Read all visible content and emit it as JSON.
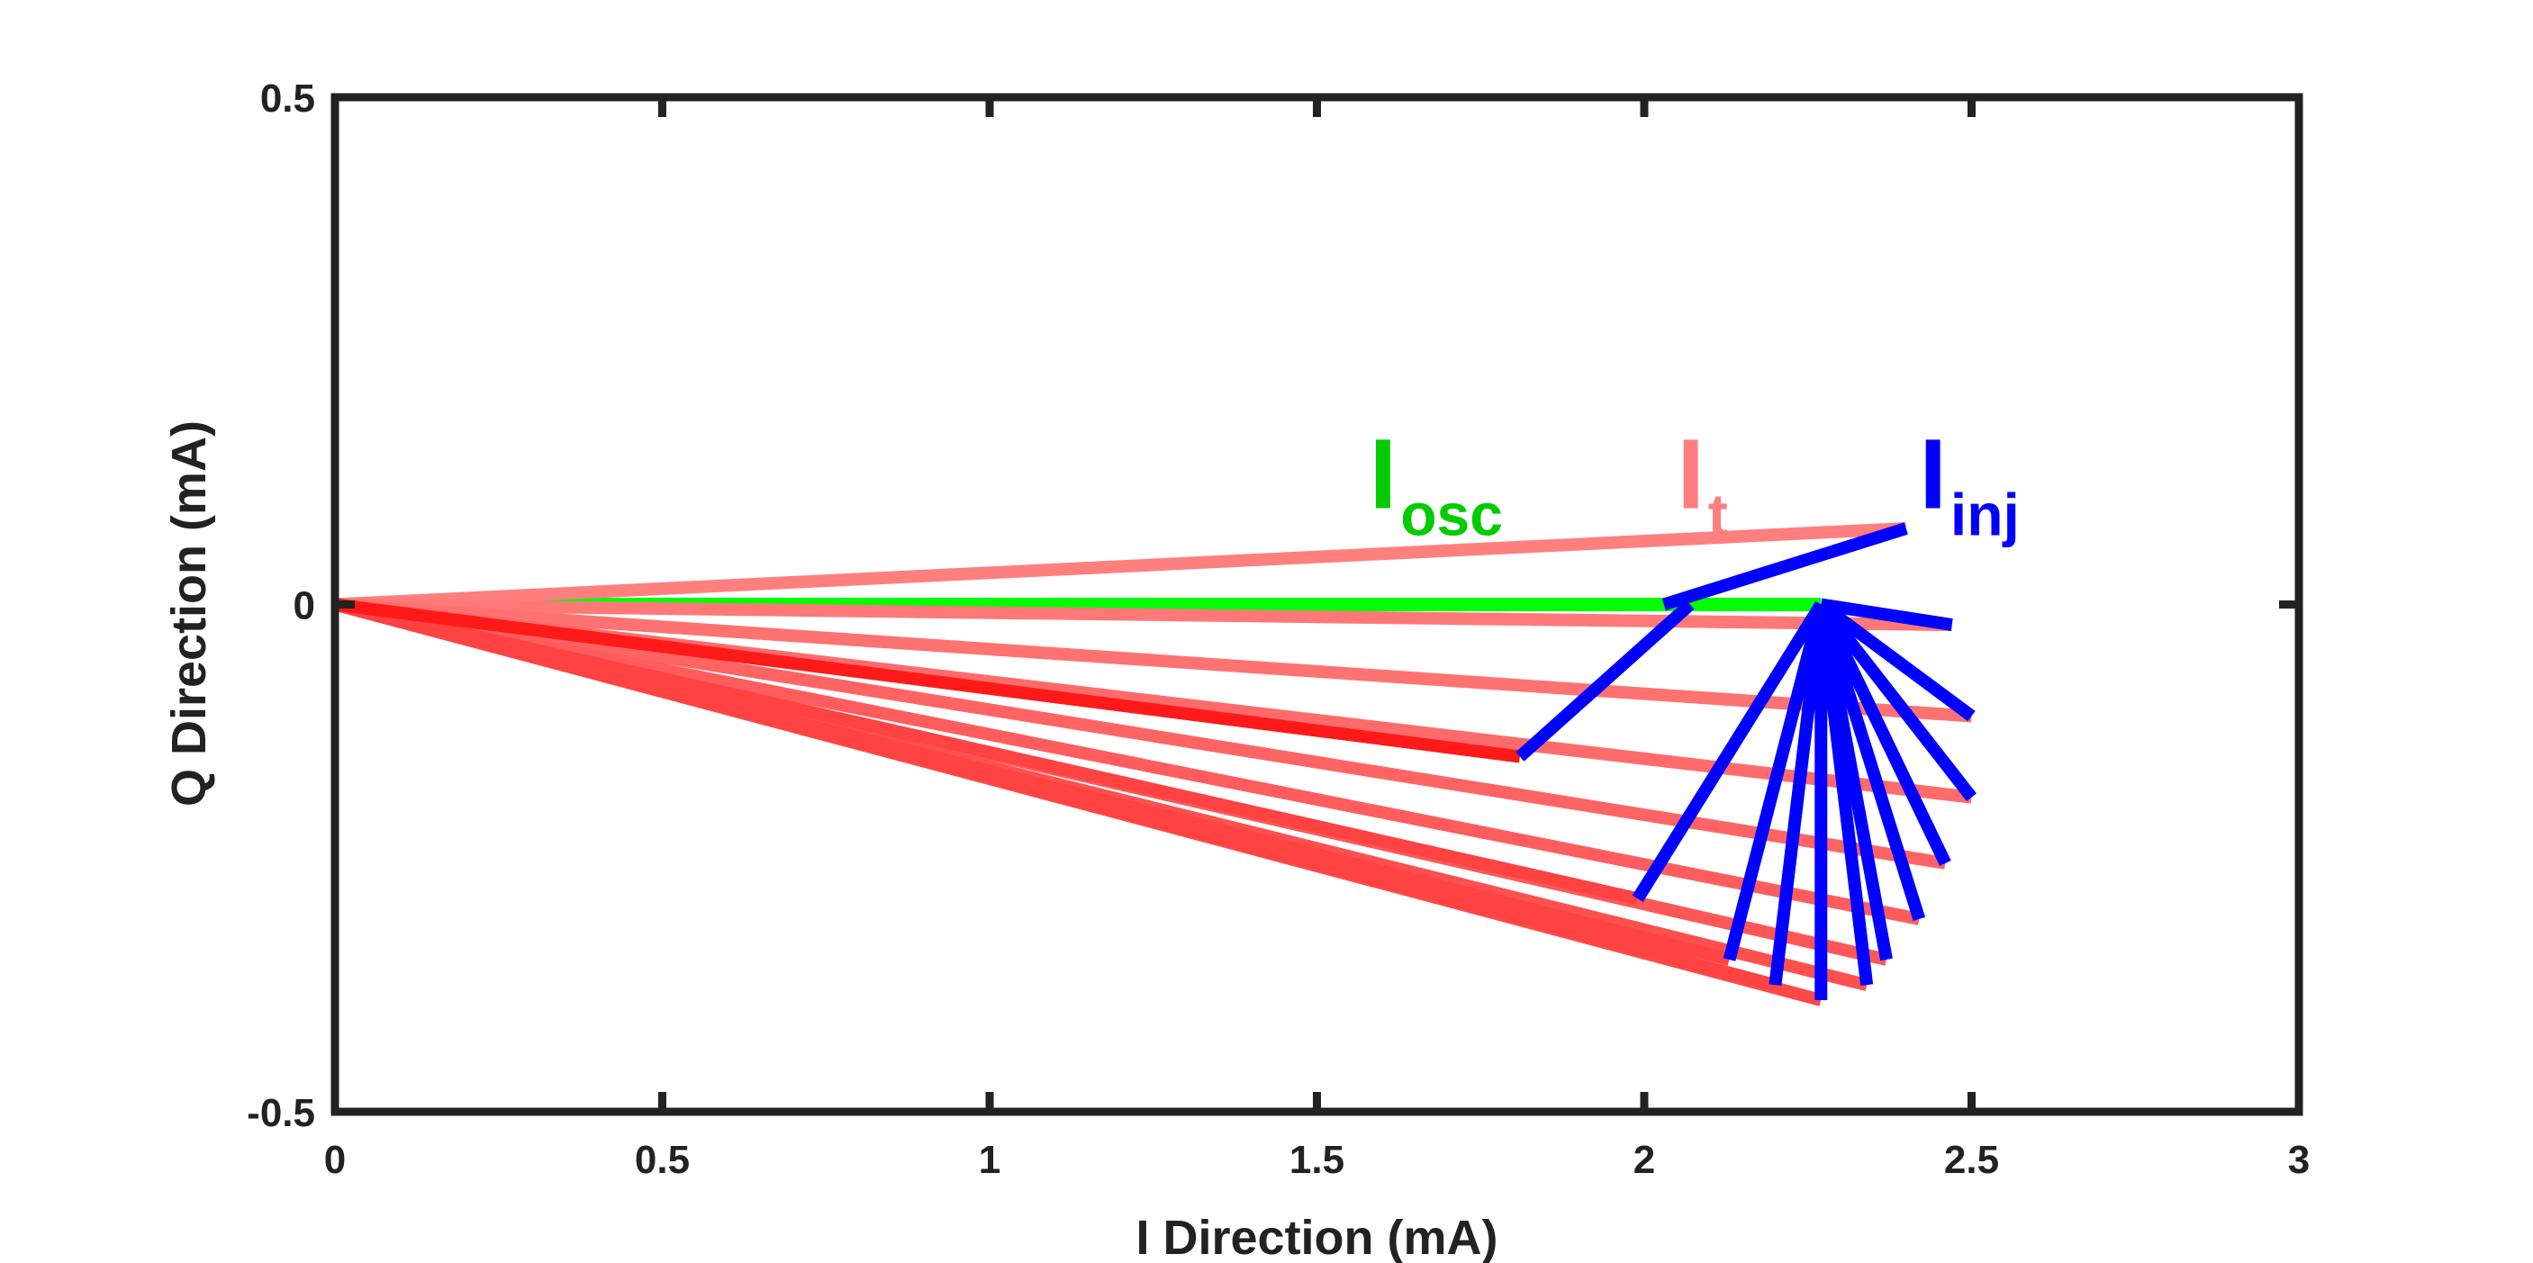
{
  "chart_data": {
    "type": "line",
    "title": "",
    "xlabel": "I Direction (mA)",
    "ylabel": "Q Direction (mA)",
    "xlim": [
      0,
      3
    ],
    "ylim": [
      -0.5,
      0.5
    ],
    "xticks": [
      0,
      0.5,
      1,
      1.5,
      2,
      2.5,
      3
    ],
    "xtick_labels": [
      "0",
      "0.5",
      "1",
      "1.5",
      "2",
      "2.5",
      "3"
    ],
    "yticks": [
      -0.5,
      0,
      0.5
    ],
    "ytick_labels": [
      "-0.5",
      "0",
      "0.5"
    ],
    "grid": false,
    "colors": {
      "axes": "#222222",
      "osc": "#00ff00",
      "inj": "#0000ff",
      "t_light": "#ff7f7f",
      "t_dark": "#ff1a1a"
    },
    "annotations": [
      {
        "main": "I",
        "sub": "osc",
        "color": "#00cc00",
        "x": 1.58,
        "y": 0.095
      },
      {
        "main": "I",
        "sub": "t",
        "color": "#ff7f7f",
        "x": 2.05,
        "y": 0.095
      },
      {
        "main": "I",
        "sub": "inj",
        "color": "#0000ff",
        "x": 2.42,
        "y": 0.095
      }
    ],
    "series": [
      {
        "name": "I_osc",
        "color": "#00ff00",
        "vectors": [
          {
            "from": [
              0,
              0
            ],
            "to": [
              2.03,
              0.0
            ]
          },
          {
            "from": [
              0,
              0
            ],
            "to": [
              2.27,
              0.0
            ]
          }
        ]
      },
      {
        "name": "I_inj",
        "color": "#0000ff",
        "vectors": [
          {
            "from": [
              2.03,
              0.0
            ],
            "to": [
              2.4,
              0.075
            ]
          },
          {
            "from": [
              2.27,
              0.0
            ],
            "to": [
              2.47,
              -0.02
            ]
          },
          {
            "from": [
              2.27,
              0.0
            ],
            "to": [
              2.5,
              -0.11
            ]
          },
          {
            "from": [
              2.27,
              0.0
            ],
            "to": [
              2.5,
              -0.19
            ]
          },
          {
            "from": [
              2.27,
              0.0
            ],
            "to": [
              2.46,
              -0.255
            ]
          },
          {
            "from": [
              2.27,
              0.0
            ],
            "to": [
              2.42,
              -0.31
            ]
          },
          {
            "from": [
              2.27,
              0.0
            ],
            "to": [
              2.37,
              -0.35
            ]
          },
          {
            "from": [
              2.27,
              0.0
            ],
            "to": [
              2.34,
              -0.375
            ]
          },
          {
            "from": [
              2.27,
              0.0
            ],
            "to": [
              2.27,
              -0.39
            ]
          },
          {
            "from": [
              2.27,
              0.0
            ],
            "to": [
              2.2,
              -0.375
            ]
          },
          {
            "from": [
              2.27,
              0.0
            ],
            "to": [
              2.13,
              -0.35
            ]
          },
          {
            "from": [
              2.27,
              0.0
            ],
            "to": [
              1.99,
              -0.29
            ]
          },
          {
            "from": [
              2.07,
              0.0
            ],
            "to": [
              1.81,
              -0.15
            ]
          }
        ]
      },
      {
        "name": "I_t",
        "color": "#ff7f7f",
        "vectors": [
          {
            "from": [
              0,
              0
            ],
            "to": [
              2.4,
              0.075
            ]
          },
          {
            "from": [
              0,
              0
            ],
            "to": [
              2.47,
              -0.02
            ]
          },
          {
            "from": [
              0,
              0
            ],
            "to": [
              2.5,
              -0.11
            ]
          },
          {
            "from": [
              0,
              0
            ],
            "to": [
              2.5,
              -0.19
            ]
          },
          {
            "from": [
              0,
              0
            ],
            "to": [
              2.46,
              -0.255
            ]
          },
          {
            "from": [
              0,
              0
            ],
            "to": [
              2.42,
              -0.31
            ]
          },
          {
            "from": [
              0,
              0
            ],
            "to": [
              2.37,
              -0.35
            ]
          },
          {
            "from": [
              0,
              0
            ],
            "to": [
              2.34,
              -0.375
            ]
          },
          {
            "from": [
              0,
              0
            ],
            "to": [
              2.27,
              -0.39
            ]
          },
          {
            "from": [
              0,
              0
            ],
            "to": [
              2.2,
              -0.375
            ]
          },
          {
            "from": [
              0,
              0
            ],
            "to": [
              2.13,
              -0.35
            ]
          },
          {
            "from": [
              0,
              0
            ],
            "to": [
              1.99,
              -0.29
            ]
          },
          {
            "from": [
              0,
              0
            ],
            "to": [
              1.81,
              -0.15
            ]
          }
        ]
      }
    ]
  }
}
